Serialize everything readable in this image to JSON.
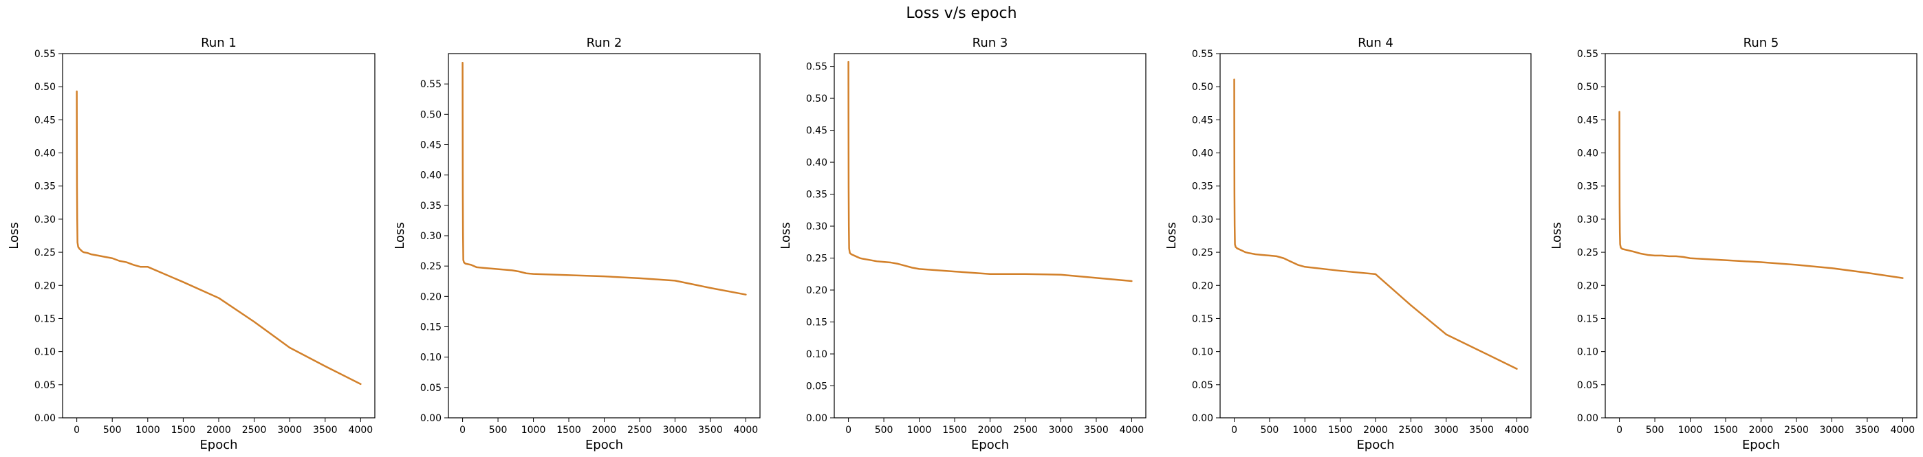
{
  "figure": {
    "title": "Loss v/s epoch"
  },
  "chart_data": [
    {
      "type": "line",
      "title": "Run 1",
      "xlabel": "Epoch",
      "ylabel": "Loss",
      "xlim": [
        -200,
        4200
      ],
      "ylim": [
        0,
        0.55
      ],
      "xticks": [
        0,
        500,
        1000,
        1500,
        2000,
        2500,
        3000,
        3500,
        4000
      ],
      "xtick_labels": [
        "0",
        "500",
        "1000",
        "1500",
        "2000",
        "2500",
        "3000",
        "3500",
        "4000"
      ],
      "yticks": [
        0,
        0.05,
        0.1,
        0.15,
        0.2,
        0.25,
        0.3,
        0.35,
        0.4,
        0.45,
        0.5,
        0.55
      ],
      "ytick_labels": [
        "0.00",
        "0.05",
        "0.10",
        "0.15",
        "0.20",
        "0.25",
        "0.30",
        "0.35",
        "0.40",
        "0.45",
        "0.50",
        "0.55"
      ],
      "color": "#d2802a",
      "series": [
        {
          "x": [
            0,
            1,
            3,
            6,
            10,
            20,
            40,
            60,
            80,
            100,
            150,
            200,
            300,
            400,
            500,
            600,
            700,
            800,
            900,
            1000,
            1500,
            2000,
            2500,
            3000,
            3500,
            4000
          ],
          "y": [
            0.493,
            0.44,
            0.35,
            0.3,
            0.265,
            0.258,
            0.255,
            0.253,
            0.251,
            0.25,
            0.249,
            0.247,
            0.245,
            0.243,
            0.241,
            0.237,
            0.235,
            0.231,
            0.228,
            0.228,
            0.205,
            0.181,
            0.145,
            0.106,
            0.078,
            0.051
          ]
        }
      ]
    },
    {
      "type": "line",
      "title": "Run 2",
      "xlabel": "Epoch",
      "ylabel": "Loss",
      "xlim": [
        -200,
        4200
      ],
      "ylim": [
        0,
        0.6
      ],
      "xticks": [
        0,
        500,
        1000,
        1500,
        2000,
        2500,
        3000,
        3500,
        4000
      ],
      "xtick_labels": [
        "0",
        "500",
        "1000",
        "1500",
        "2000",
        "2500",
        "3000",
        "3500",
        "4000"
      ],
      "yticks": [
        0,
        0.05,
        0.1,
        0.15,
        0.2,
        0.25,
        0.3,
        0.35,
        0.4,
        0.45,
        0.5,
        0.55
      ],
      "ytick_labels": [
        "0.00",
        "0.05",
        "0.10",
        "0.15",
        "0.20",
        "0.25",
        "0.30",
        "0.35",
        "0.40",
        "0.45",
        "0.50",
        "0.55"
      ],
      "color": "#d2802a",
      "series": [
        {
          "x": [
            0,
            1,
            3,
            6,
            10,
            20,
            40,
            80,
            120,
            160,
            200,
            300,
            400,
            500,
            600,
            700,
            800,
            900,
            1000,
            1500,
            2000,
            2500,
            3000,
            3500,
            4000
          ],
          "y": [
            0.585,
            0.5,
            0.37,
            0.3,
            0.26,
            0.256,
            0.254,
            0.253,
            0.252,
            0.25,
            0.248,
            0.247,
            0.246,
            0.245,
            0.244,
            0.243,
            0.241,
            0.238,
            0.237,
            0.235,
            0.233,
            0.23,
            0.226,
            0.214,
            0.203
          ]
        }
      ]
    },
    {
      "type": "line",
      "title": "Run 3",
      "xlabel": "Epoch",
      "ylabel": "Loss",
      "xlim": [
        -200,
        4200
      ],
      "ylim": [
        0,
        0.57
      ],
      "xticks": [
        0,
        500,
        1000,
        1500,
        2000,
        2500,
        3000,
        3500,
        4000
      ],
      "xtick_labels": [
        "0",
        "500",
        "1000",
        "1500",
        "2000",
        "2500",
        "3000",
        "3500",
        "4000"
      ],
      "yticks": [
        0,
        0.05,
        0.1,
        0.15,
        0.2,
        0.25,
        0.3,
        0.35,
        0.4,
        0.45,
        0.5,
        0.55
      ],
      "ytick_labels": [
        "0.00",
        "0.05",
        "0.10",
        "0.15",
        "0.20",
        "0.25",
        "0.30",
        "0.35",
        "0.40",
        "0.45",
        "0.50",
        "0.55"
      ],
      "color": "#d2802a",
      "series": [
        {
          "x": [
            0,
            1,
            3,
            6,
            10,
            20,
            40,
            80,
            120,
            160,
            200,
            300,
            400,
            500,
            600,
            700,
            800,
            900,
            1000,
            1500,
            2000,
            2500,
            3000,
            3500,
            4000
          ],
          "y": [
            0.557,
            0.48,
            0.36,
            0.3,
            0.265,
            0.258,
            0.256,
            0.254,
            0.252,
            0.25,
            0.249,
            0.247,
            0.245,
            0.244,
            0.243,
            0.241,
            0.238,
            0.235,
            0.233,
            0.229,
            0.225,
            0.225,
            0.224,
            0.219,
            0.214
          ]
        }
      ]
    },
    {
      "type": "line",
      "title": "Run 4",
      "xlabel": "Epoch",
      "ylabel": "Loss",
      "xlim": [
        -200,
        4200
      ],
      "ylim": [
        0,
        0.55
      ],
      "xticks": [
        0,
        500,
        1000,
        1500,
        2000,
        2500,
        3000,
        3500,
        4000
      ],
      "xtick_labels": [
        "0",
        "500",
        "1000",
        "1500",
        "2000",
        "2500",
        "3000",
        "3500",
        "4000"
      ],
      "yticks": [
        0,
        0.05,
        0.1,
        0.15,
        0.2,
        0.25,
        0.3,
        0.35,
        0.4,
        0.45,
        0.5,
        0.55
      ],
      "ytick_labels": [
        "0.00",
        "0.05",
        "0.10",
        "0.15",
        "0.20",
        "0.25",
        "0.30",
        "0.35",
        "0.40",
        "0.45",
        "0.50",
        "0.55"
      ],
      "color": "#d2802a",
      "series": [
        {
          "x": [
            0,
            1,
            3,
            6,
            10,
            20,
            40,
            80,
            120,
            160,
            200,
            300,
            400,
            500,
            600,
            700,
            800,
            900,
            1000,
            1500,
            2000,
            2500,
            3000,
            3500,
            4000
          ],
          "y": [
            0.511,
            0.44,
            0.34,
            0.29,
            0.262,
            0.258,
            0.256,
            0.254,
            0.252,
            0.25,
            0.249,
            0.247,
            0.246,
            0.245,
            0.244,
            0.241,
            0.236,
            0.231,
            0.228,
            0.222,
            0.217,
            0.17,
            0.126,
            0.1,
            0.074
          ]
        }
      ]
    },
    {
      "type": "line",
      "title": "Run 5",
      "xlabel": "Epoch",
      "ylabel": "Loss",
      "xlim": [
        -200,
        4200
      ],
      "ylim": [
        0,
        0.55
      ],
      "xticks": [
        0,
        500,
        1000,
        1500,
        2000,
        2500,
        3000,
        3500,
        4000
      ],
      "xtick_labels": [
        "0",
        "500",
        "1000",
        "1500",
        "2000",
        "2500",
        "3000",
        "3500",
        "4000"
      ],
      "yticks": [
        0,
        0.05,
        0.1,
        0.15,
        0.2,
        0.25,
        0.3,
        0.35,
        0.4,
        0.45,
        0.5,
        0.55
      ],
      "ytick_labels": [
        "0.00",
        "0.05",
        "0.10",
        "0.15",
        "0.20",
        "0.25",
        "0.30",
        "0.35",
        "0.40",
        "0.45",
        "0.50",
        "0.55"
      ],
      "color": "#d2802a",
      "series": [
        {
          "x": [
            0,
            1,
            3,
            6,
            10,
            20,
            40,
            80,
            120,
            160,
            200,
            300,
            400,
            500,
            600,
            700,
            800,
            900,
            1000,
            1500,
            2000,
            2500,
            3000,
            3500,
            4000
          ],
          "y": [
            0.462,
            0.4,
            0.32,
            0.28,
            0.262,
            0.257,
            0.255,
            0.254,
            0.253,
            0.252,
            0.251,
            0.248,
            0.246,
            0.245,
            0.245,
            0.244,
            0.244,
            0.243,
            0.241,
            0.238,
            0.235,
            0.231,
            0.226,
            0.219,
            0.211
          ]
        }
      ]
    }
  ]
}
